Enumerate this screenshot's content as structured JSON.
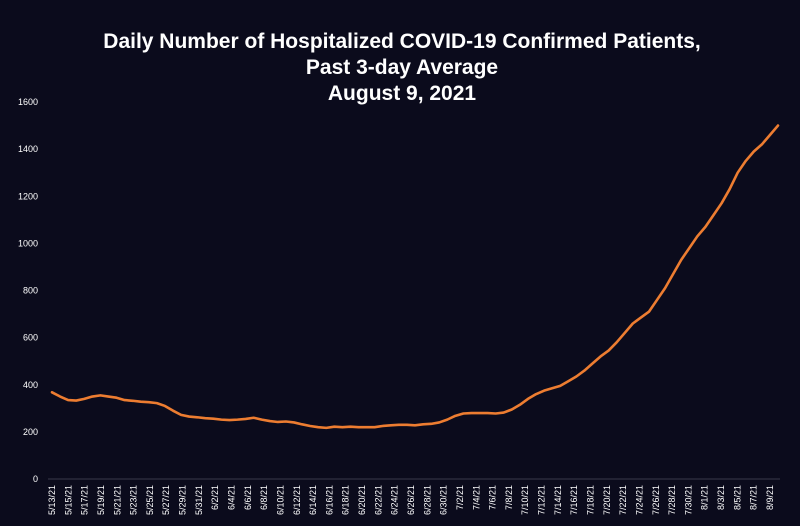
{
  "colors": {
    "background": "#0b0b1c",
    "line": "#ed7d31",
    "text": "#ffffff"
  },
  "chart_data": {
    "type": "line",
    "title_lines": [
      "Daily Number of Hospitalized COVID-19 Confirmed Patients,",
      "Past 3-day Average",
      "August 9, 2021"
    ],
    "xlabel": "",
    "ylabel": "",
    "ylim": [
      0,
      1600
    ],
    "yticks": [
      0,
      200,
      400,
      600,
      800,
      1000,
      1200,
      1400,
      1600
    ],
    "grid": false,
    "x_tick_labels": [
      "5/13/21",
      "5/15/21",
      "5/17/21",
      "5/19/21",
      "5/21/21",
      "5/23/21",
      "5/25/21",
      "5/27/21",
      "5/29/21",
      "5/31/21",
      "6/2/21",
      "6/4/21",
      "6/6/21",
      "6/8/21",
      "6/10/21",
      "6/12/21",
      "6/14/21",
      "6/16/21",
      "6/18/21",
      "6/20/21",
      "6/22/21",
      "6/24/21",
      "6/26/21",
      "6/28/21",
      "6/30/21",
      "7/2/21",
      "7/4/21",
      "7/6/21",
      "7/8/21",
      "7/10/21",
      "7/12/21",
      "7/14/21",
      "7/16/21",
      "7/18/21",
      "7/20/21",
      "7/22/21",
      "7/24/21",
      "7/26/21",
      "7/28/21",
      "7/30/21",
      "8/1/21",
      "8/3/21",
      "8/5/21",
      "8/7/21",
      "8/9/21"
    ],
    "series": [
      {
        "values": [
          368,
          350,
          335,
          333,
          340,
          350,
          355,
          350,
          345,
          335,
          332,
          328,
          326,
          322,
          310,
          290,
          272,
          265,
          262,
          258,
          256,
          252,
          250,
          252,
          255,
          260,
          252,
          246,
          242,
          244,
          240,
          232,
          225,
          220,
          217,
          222,
          220,
          222,
          220,
          220,
          220,
          225,
          228,
          230,
          230,
          228,
          232,
          234,
          240,
          252,
          268,
          278,
          280,
          280,
          280,
          278,
          282,
          295,
          315,
          340,
          360,
          375,
          385,
          395,
          415,
          435,
          460,
          490,
          520,
          545,
          580,
          620,
          660,
          685,
          710,
          760,
          810,
          870,
          930,
          980,
          1030,
          1070,
          1120,
          1170,
          1230,
          1300,
          1350,
          1390,
          1420,
          1460,
          1500
        ]
      }
    ]
  }
}
